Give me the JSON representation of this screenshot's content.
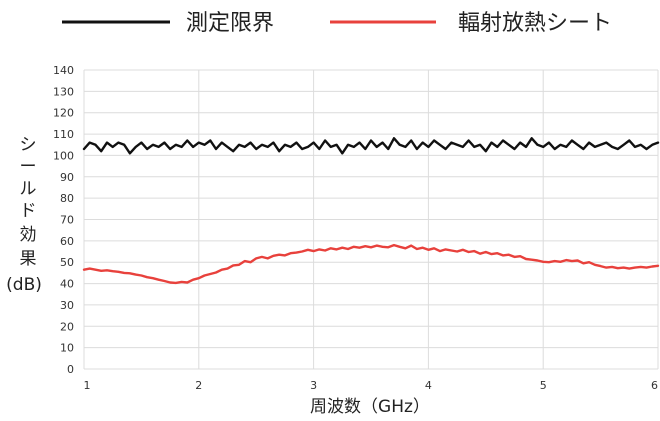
{
  "chart_data": {
    "type": "line",
    "title": "",
    "xlabel": "周波数（GHz）",
    "ylabel": "シールド効果(dB)",
    "ylabel_lines": [
      "シ",
      "ー",
      "ル",
      "ド",
      "効",
      "果",
      "(dB)"
    ],
    "xlim": [
      1,
      6
    ],
    "ylim": [
      0,
      140
    ],
    "xticks": [
      1,
      2,
      3,
      4,
      5,
      6
    ],
    "yticks": [
      0,
      10,
      20,
      30,
      40,
      50,
      60,
      70,
      80,
      90,
      100,
      110,
      120,
      130,
      140
    ],
    "grid": true,
    "legend_position": "top",
    "series": [
      {
        "name": "測定限界",
        "color": "#111111",
        "x": [
          1.0,
          1.05,
          1.1,
          1.15,
          1.2,
          1.25,
          1.3,
          1.35,
          1.4,
          1.45,
          1.5,
          1.55,
          1.6,
          1.65,
          1.7,
          1.75,
          1.8,
          1.85,
          1.9,
          1.95,
          2.0,
          2.05,
          2.1,
          2.15,
          2.2,
          2.25,
          2.3,
          2.35,
          2.4,
          2.45,
          2.5,
          2.55,
          2.6,
          2.65,
          2.7,
          2.75,
          2.8,
          2.85,
          2.9,
          2.95,
          3.0,
          3.05,
          3.1,
          3.15,
          3.2,
          3.25,
          3.3,
          3.35,
          3.4,
          3.45,
          3.5,
          3.55,
          3.6,
          3.65,
          3.7,
          3.75,
          3.8,
          3.85,
          3.9,
          3.95,
          4.0,
          4.05,
          4.1,
          4.15,
          4.2,
          4.25,
          4.3,
          4.35,
          4.4,
          4.45,
          4.5,
          4.55,
          4.6,
          4.65,
          4.7,
          4.75,
          4.8,
          4.85,
          4.9,
          4.95,
          5.0,
          5.05,
          5.1,
          5.15,
          5.2,
          5.25,
          5.3,
          5.35,
          5.4,
          5.45,
          5.5,
          5.55,
          5.6,
          5.65,
          5.7,
          5.75,
          5.8,
          5.85,
          5.9,
          5.95,
          6.0
        ],
        "values": [
          103,
          106,
          105,
          102,
          106,
          104,
          106,
          105,
          101,
          104,
          106,
          103,
          105,
          104,
          106,
          103,
          105,
          104,
          107,
          104,
          106,
          105,
          107,
          103,
          106,
          104,
          102,
          105,
          104,
          106,
          103,
          105,
          104,
          106,
          102,
          105,
          104,
          106,
          103,
          104,
          106,
          103,
          107,
          104,
          105,
          101,
          105,
          104,
          106,
          103,
          107,
          104,
          106,
          103,
          108,
          105,
          104,
          107,
          103,
          106,
          104,
          107,
          105,
          103,
          106,
          105,
          104,
          107,
          104,
          105,
          102,
          106,
          104,
          107,
          105,
          103,
          106,
          104,
          108,
          105,
          104,
          106,
          103,
          105,
          104,
          107,
          105,
          103,
          106,
          104,
          105,
          106,
          104,
          103,
          105,
          107,
          104,
          105,
          103,
          105,
          106
        ]
      },
      {
        "name": "輻射放熱シート",
        "color": "#e8413c",
        "x": [
          1.0,
          1.05,
          1.1,
          1.15,
          1.2,
          1.25,
          1.3,
          1.35,
          1.4,
          1.45,
          1.5,
          1.55,
          1.6,
          1.65,
          1.7,
          1.75,
          1.8,
          1.85,
          1.9,
          1.95,
          2.0,
          2.05,
          2.1,
          2.15,
          2.2,
          2.25,
          2.3,
          2.35,
          2.4,
          2.45,
          2.5,
          2.55,
          2.6,
          2.65,
          2.7,
          2.75,
          2.8,
          2.85,
          2.9,
          2.95,
          3.0,
          3.05,
          3.1,
          3.15,
          3.2,
          3.25,
          3.3,
          3.35,
          3.4,
          3.45,
          3.5,
          3.55,
          3.6,
          3.65,
          3.7,
          3.75,
          3.8,
          3.85,
          3.9,
          3.95,
          4.0,
          4.05,
          4.1,
          4.15,
          4.2,
          4.25,
          4.3,
          4.35,
          4.4,
          4.45,
          4.5,
          4.55,
          4.6,
          4.65,
          4.7,
          4.75,
          4.8,
          4.85,
          4.9,
          4.95,
          5.0,
          5.05,
          5.1,
          5.15,
          5.2,
          5.25,
          5.3,
          5.35,
          5.4,
          5.45,
          5.5,
          5.55,
          5.6,
          5.65,
          5.7,
          5.75,
          5.8,
          5.85,
          5.9,
          5.95,
          6.0
        ],
        "values": [
          46.5,
          47.0,
          46.5,
          46.0,
          46.2,
          45.8,
          45.5,
          45.0,
          44.8,
          44.2,
          43.8,
          43.0,
          42.5,
          41.8,
          41.2,
          40.5,
          40.3,
          40.8,
          40.5,
          41.8,
          42.5,
          43.8,
          44.5,
          45.2,
          46.5,
          47.0,
          48.5,
          48.8,
          50.5,
          50.0,
          51.8,
          52.5,
          51.8,
          53.0,
          53.5,
          53.2,
          54.2,
          54.5,
          55.0,
          55.8,
          55.2,
          56.0,
          55.5,
          56.5,
          56.0,
          56.8,
          56.2,
          57.2,
          56.8,
          57.5,
          57.0,
          57.8,
          57.2,
          57.0,
          58.0,
          57.2,
          56.5,
          57.8,
          56.2,
          56.8,
          55.8,
          56.5,
          55.2,
          56.0,
          55.5,
          55.0,
          55.8,
          54.8,
          55.2,
          54.0,
          54.8,
          53.8,
          54.2,
          53.2,
          53.5,
          52.5,
          52.8,
          51.5,
          51.2,
          50.8,
          50.2,
          50.0,
          50.5,
          50.2,
          51.0,
          50.5,
          50.8,
          49.5,
          50.0,
          48.8,
          48.2,
          47.5,
          47.8,
          47.2,
          47.5,
          47.0,
          47.5,
          47.8,
          47.5,
          48.0,
          48.3
        ]
      }
    ]
  }
}
